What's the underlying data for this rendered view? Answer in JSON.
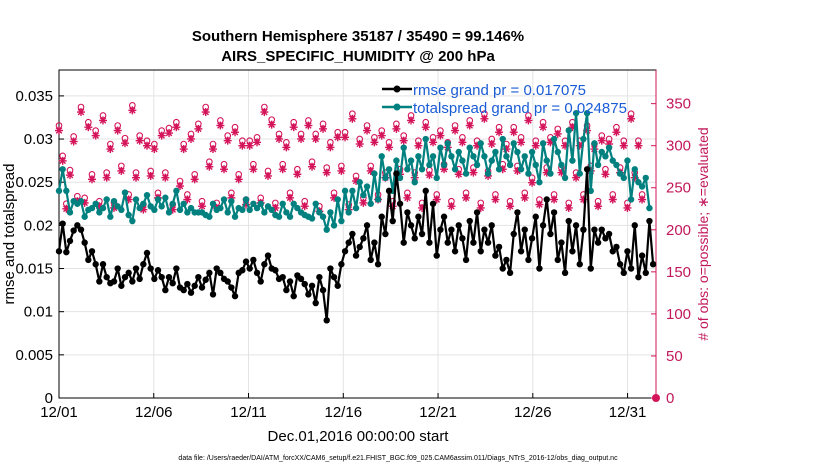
{
  "chart_data": {
    "type": "line",
    "title": "Southern Hemisphere 35187 / 35490 = 99.146%",
    "subtitle": "AIRS_SPECIFIC_HUMIDITY @ 200 hPa",
    "xlabel": "Dec.01,2016 00:00:00 start",
    "ylabel": "rmse and totalspread",
    "ylabel_right": "# of obs: o=possible; ∗=evaluated",
    "footnote": "data file: /Users/raeder/DAI/ATM_forcXX/CAM6_setup/f.e21.FHIST_BGC.f09_025.CAM6assim.011/Diags_NTrS_2016-12/obs_diag_output.nc",
    "xlim": [
      0,
      31.5
    ],
    "ylim": [
      0,
      0.038
    ],
    "ylim_right": [
      0,
      390
    ],
    "x_ticks": [
      {
        "x": 0,
        "label": "12/01"
      },
      {
        "x": 5,
        "label": "12/06"
      },
      {
        "x": 10,
        "label": "12/11"
      },
      {
        "x": 15,
        "label": "12/16"
      },
      {
        "x": 20,
        "label": "12/21"
      },
      {
        "x": 25,
        "label": "12/26"
      },
      {
        "x": 30,
        "label": "12/31"
      }
    ],
    "y_ticks": [
      "0",
      "0.005",
      "0.01",
      "0.015",
      "0.02",
      "0.025",
      "0.03",
      "0.035"
    ],
    "y_tick_values": [
      0,
      0.005,
      0.01,
      0.015,
      0.02,
      0.025,
      0.03,
      0.035
    ],
    "y_ticks_right": [
      "0",
      "50",
      "100",
      "150",
      "200",
      "250",
      "300",
      "350"
    ],
    "y_tick_values_right": [
      0,
      50,
      100,
      150,
      200,
      250,
      300,
      350
    ],
    "grid": true,
    "legend_position": "top-right",
    "colors": {
      "rmse": "#000000",
      "spread": "#00807f",
      "obs": "#d4145a"
    },
    "series": [
      {
        "name": "rmse grand pr = 0.017075",
        "axis": "left",
        "values": [
          0.017,
          0.0202,
          0.0169,
          0.0182,
          0.0194,
          0.02,
          0.0195,
          0.018,
          0.016,
          0.017,
          0.0155,
          0.0135,
          0.0155,
          0.014,
          0.0133,
          0.0135,
          0.015,
          0.013,
          0.014,
          0.0145,
          0.0135,
          0.015,
          0.0138,
          0.0155,
          0.0168,
          0.015,
          0.0138,
          0.0148,
          0.014,
          0.0125,
          0.014,
          0.0133,
          0.015,
          0.0128,
          0.0125,
          0.0132,
          0.0122,
          0.013,
          0.014,
          0.0128,
          0.0137,
          0.0145,
          0.012,
          0.015,
          0.0145,
          0.0138,
          0.0135,
          0.0128,
          0.0118,
          0.0145,
          0.0148,
          0.0158,
          0.015,
          0.016,
          0.0145,
          0.0135,
          0.0155,
          0.0165,
          0.015,
          0.0148,
          0.0138,
          0.014,
          0.0125,
          0.0135,
          0.0118,
          0.0142,
          0.0138,
          0.0132,
          0.012,
          0.013,
          0.011,
          0.014,
          0.0125,
          0.009,
          0.015,
          0.014,
          0.013,
          0.0155,
          0.017,
          0.018,
          0.019,
          0.0165,
          0.0175,
          0.0185,
          0.02,
          0.016,
          0.018,
          0.0155,
          0.021,
          0.019,
          0.024,
          0.0205,
          0.026,
          0.0225,
          0.018,
          0.0215,
          0.02,
          0.0185,
          0.021,
          0.019,
          0.024,
          0.018,
          0.0225,
          0.0165,
          0.0195,
          0.021,
          0.018,
          0.0195,
          0.017,
          0.02,
          0.0185,
          0.016,
          0.0205,
          0.018,
          0.0215,
          0.017,
          0.0195,
          0.018,
          0.02,
          0.0165,
          0.0175,
          0.015,
          0.016,
          0.0145,
          0.019,
          0.0215,
          0.017,
          0.0195,
          0.016,
          0.0185,
          0.021,
          0.015,
          0.02,
          0.023,
          0.019,
          0.0215,
          0.016,
          0.018,
          0.0145,
          0.0205,
          0.017,
          0.02,
          0.0155,
          0.0195,
          0.0265,
          0.015,
          0.0195,
          0.018,
          0.0195,
          0.0185,
          0.019,
          0.017,
          0.0175,
          0.0155,
          0.0145,
          0.017,
          0.015,
          0.02,
          0.014,
          0.0165,
          0.0145,
          0.0205,
          0.0155
        ]
      },
      {
        "name": "totalspread grand pr = 0.024875",
        "axis": "left",
        "values": [
          0.024,
          0.0265,
          0.024,
          0.0215,
          0.0228,
          0.0225,
          0.0228,
          0.021,
          0.0218,
          0.022,
          0.0225,
          0.0215,
          0.022,
          0.023,
          0.021,
          0.0228,
          0.0222,
          0.0218,
          0.0238,
          0.0212,
          0.0205,
          0.023,
          0.022,
          0.0225,
          0.0235,
          0.0222,
          0.0218,
          0.023,
          0.0222,
          0.0232,
          0.0215,
          0.0225,
          0.024,
          0.0218,
          0.0225,
          0.0215,
          0.022,
          0.0215,
          0.0215,
          0.0215,
          0.0212,
          0.021,
          0.0225,
          0.0218,
          0.022,
          0.023,
          0.0215,
          0.0228,
          0.021,
          0.022,
          0.0218,
          0.023,
          0.0218,
          0.0225,
          0.022,
          0.0225,
          0.0215,
          0.0222,
          0.0218,
          0.0212,
          0.021,
          0.0225,
          0.0215,
          0.021,
          0.0225,
          0.022,
          0.0215,
          0.0212,
          0.021,
          0.0208,
          0.0225,
          0.0215,
          0.021,
          0.0195,
          0.0215,
          0.02,
          0.023,
          0.0205,
          0.024,
          0.0215,
          0.024,
          0.022,
          0.025,
          0.0235,
          0.0245,
          0.0225,
          0.026,
          0.023,
          0.028,
          0.0255,
          0.0265,
          0.024,
          0.0275,
          0.0255,
          0.029,
          0.0265,
          0.0275,
          0.025,
          0.028,
          0.0265,
          0.03,
          0.027,
          0.028,
          0.0255,
          0.029,
          0.027,
          0.0295,
          0.028,
          0.0265,
          0.0285,
          0.0275,
          0.026,
          0.029,
          0.028,
          0.027,
          0.0295,
          0.028,
          0.026,
          0.0275,
          0.0285,
          0.0265,
          0.03,
          0.028,
          0.027,
          0.0295,
          0.0285,
          0.0265,
          0.028,
          0.026,
          0.0285,
          0.027,
          0.025,
          0.0295,
          0.0275,
          0.026,
          0.03,
          0.0285,
          0.027,
          0.0255,
          0.031,
          0.0275,
          0.033,
          0.026,
          0.03,
          0.033,
          0.024,
          0.0295,
          0.027,
          0.0285,
          0.028,
          0.029,
          0.0275,
          0.027,
          0.026,
          0.0255,
          0.0275,
          0.023,
          0.0265,
          0.025,
          0.0245,
          0.0255,
          0.022
        ]
      },
      {
        "name": "obs possible",
        "axis": "right",
        "marker": "circle",
        "values": [
          318,
          282,
          225,
          265,
          305,
          234,
          340,
          232,
          322,
          260,
          312,
          228,
          330,
          262,
          296,
          226,
          318,
          270,
          303,
          236,
          342,
          262,
          306,
          224,
          300,
          264,
          296,
          238,
          312,
          262,
          315,
          224,
          322,
          252,
          296,
          236,
          308,
          260,
          320,
          228,
          340,
          275,
          296,
          226,
          324,
          272,
          306,
          238,
          316,
          260,
          300,
          230,
          300,
          272,
          304,
          232,
          340,
          264,
          325,
          226,
          308,
          272,
          298,
          238,
          322,
          266,
          308,
          228,
          324,
          275,
          308,
          222,
          320,
          268,
          298,
          238,
          310,
          270,
          310,
          224,
          332,
          258,
          302,
          232,
          318,
          270,
          304,
          236,
          312,
          262,
          298,
          228,
          320,
          266,
          306,
          238,
          330,
          262,
          300,
          226,
          322,
          265,
          304,
          236,
          312,
          272,
          298,
          228,
          318,
          266,
          304,
          238,
          324,
          268,
          300,
          226,
          332,
          264,
          302,
          236,
          316,
          272,
          296,
          228,
          316,
          270,
          304,
          238,
          330,
          256,
          300,
          230,
          322,
          268,
          304,
          236,
          314,
          268,
          300,
          226,
          322,
          262,
          300,
          236,
          318,
          270,
          296,
          228,
          306,
          266,
          302,
          236,
          316,
          268,
          300,
          226,
          332,
          262,
          300,
          236
        ]
      },
      {
        "name": "obs evaluated",
        "axis": "right",
        "marker": "asterisk",
        "values": [
          318,
          282,
          225,
          265,
          305,
          234,
          340,
          232,
          322,
          260,
          312,
          228,
          330,
          262,
          296,
          226,
          318,
          270,
          303,
          236,
          342,
          262,
          306,
          224,
          300,
          264,
          296,
          238,
          312,
          262,
          315,
          224,
          322,
          252,
          296,
          236,
          308,
          260,
          320,
          228,
          340,
          275,
          296,
          226,
          324,
          272,
          306,
          238,
          316,
          260,
          300,
          230,
          300,
          272,
          304,
          232,
          340,
          264,
          325,
          226,
          308,
          272,
          298,
          238,
          322,
          266,
          308,
          228,
          324,
          275,
          308,
          222,
          320,
          268,
          298,
          238,
          310,
          270,
          310,
          224,
          332,
          258,
          302,
          232,
          318,
          270,
          304,
          236,
          312,
          262,
          298,
          228,
          320,
          266,
          306,
          238,
          330,
          262,
          300,
          226,
          322,
          265,
          304,
          236,
          312,
          272,
          298,
          228,
          318,
          266,
          304,
          238,
          324,
          268,
          300,
          226,
          332,
          264,
          302,
          236,
          316,
          272,
          296,
          228,
          316,
          270,
          304,
          238,
          330,
          256,
          300,
          230,
          322,
          268,
          304,
          236,
          314,
          268,
          300,
          226,
          322,
          262,
          300,
          236,
          318,
          270,
          296,
          228,
          306,
          266,
          302,
          236,
          316,
          268,
          300,
          226,
          332,
          262,
          300,
          236
        ]
      }
    ],
    "x_step": 0.1935
  }
}
